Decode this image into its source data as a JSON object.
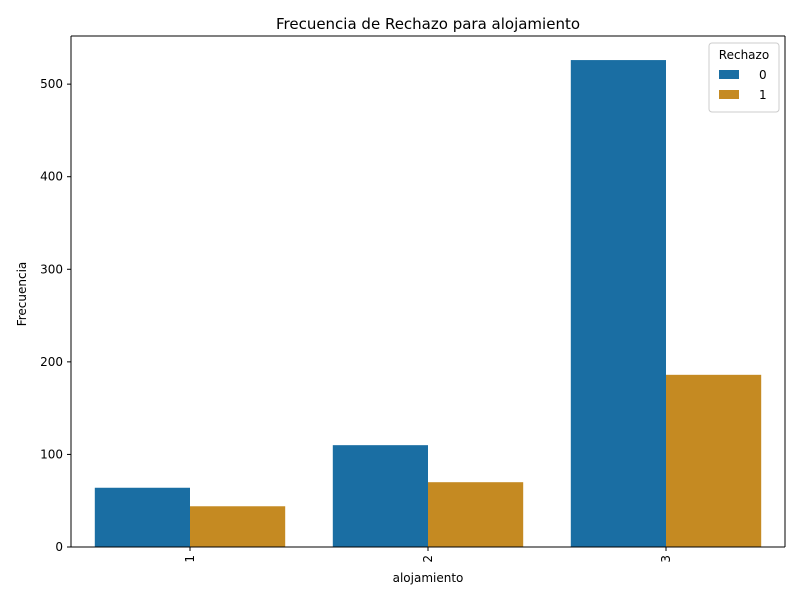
{
  "chart_data": {
    "type": "bar",
    "title": "Frecuencia de Rechazo para alojamiento",
    "xlabel": "alojamiento",
    "ylabel": "Frecuencia",
    "categories": [
      "1",
      "2",
      "3"
    ],
    "series": [
      {
        "name": "0",
        "values": [
          64,
          110,
          526
        ],
        "color": "#1a6ea3"
      },
      {
        "name": "1",
        "values": [
          44,
          70,
          186
        ],
        "color": "#c58a22"
      }
    ],
    "ylim": [
      0,
      552
    ],
    "yticks": [
      0,
      100,
      200,
      300,
      400,
      500
    ],
    "legend": {
      "title": "Rechazo",
      "placement": "top-right"
    },
    "grid": false
  }
}
